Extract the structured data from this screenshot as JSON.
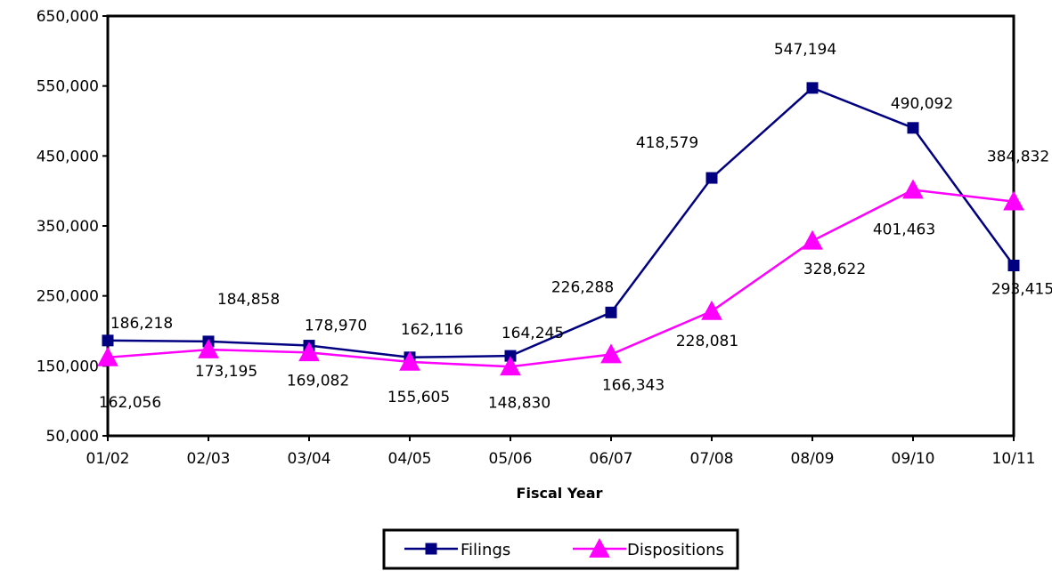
{
  "chart_data": {
    "type": "line",
    "title": "",
    "xlabel": "Fiscal Year",
    "ylabel": "",
    "categories": [
      "01/02",
      "02/03",
      "03/04",
      "04/05",
      "05/06",
      "06/07",
      "07/08",
      "08/09",
      "09/10",
      "10/11"
    ],
    "yticks": [
      "50,000",
      "150,000",
      "250,000",
      "350,000",
      "450,000",
      "550,000",
      "650,000"
    ],
    "ylim": [
      50000,
      650000
    ],
    "grid": false,
    "legend_position": "bottom",
    "series": [
      {
        "name": "Filings",
        "color": "#000080",
        "marker": "square",
        "values": [
          186218,
          184858,
          178970,
          162116,
          164245,
          226288,
          418579,
          547194,
          490092,
          293415
        ],
        "labels": [
          "186,218",
          "184,858",
          "178,970",
          "162,116",
          "164,245",
          "226,288",
          "418,579",
          "547,194",
          "490,092",
          "293,415"
        ]
      },
      {
        "name": "Dispositions",
        "color": "#ff00ff",
        "marker": "triangle",
        "values": [
          162056,
          173195,
          169082,
          155605,
          148830,
          166343,
          228081,
          328622,
          401463,
          384832
        ],
        "labels": [
          "162,056",
          "173,195",
          "169,082",
          "155,605",
          "148,830",
          "166,343",
          "228,081",
          "328,622",
          "401,463",
          "384,832"
        ]
      }
    ]
  }
}
